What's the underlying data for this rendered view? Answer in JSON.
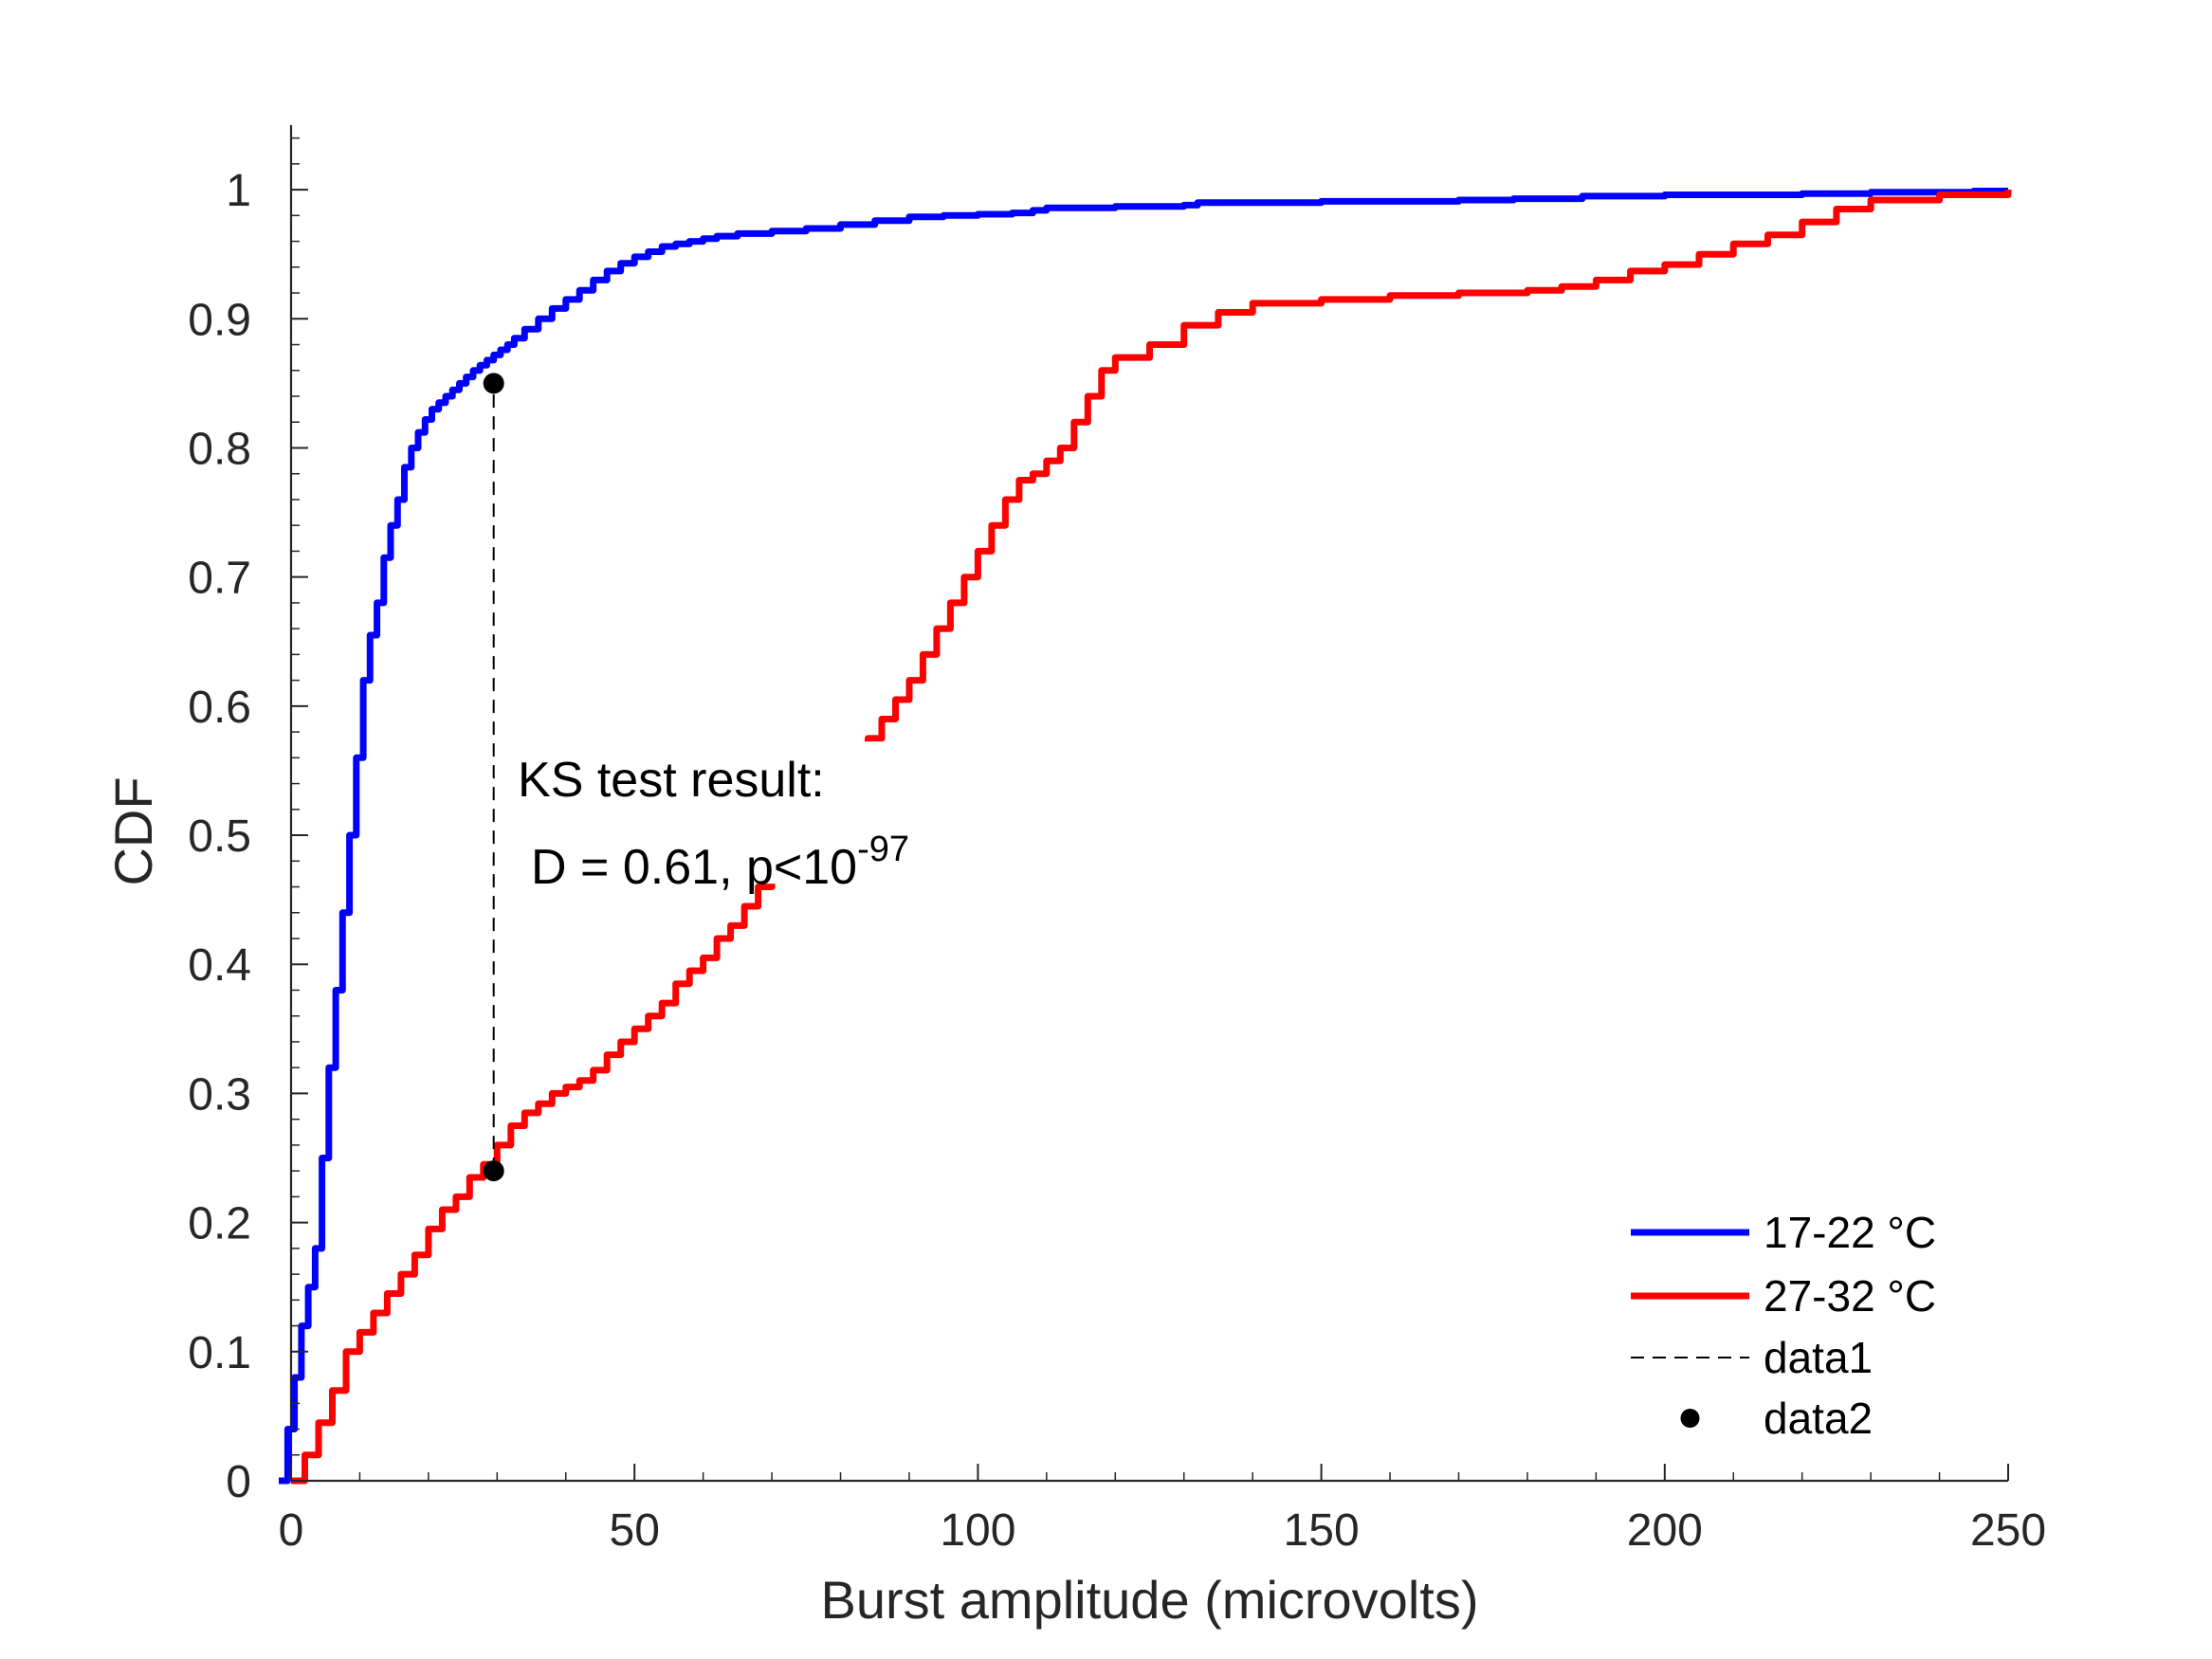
{
  "chart_data": {
    "type": "line",
    "title": "",
    "xlabel": "Burst amplitude (microvolts)",
    "ylabel": "CDF",
    "xlim": [
      0,
      250
    ],
    "ylim": [
      0,
      1.05
    ],
    "x_ticks": [
      0,
      50,
      100,
      150,
      200,
      250
    ],
    "y_ticks": [
      0,
      0.1,
      0.2,
      0.3,
      0.4,
      0.5,
      0.6,
      0.7,
      0.8,
      0.9,
      1
    ],
    "x_tick_labels": [
      "0",
      "50",
      "100",
      "150",
      "200",
      "250"
    ],
    "y_tick_labels": [
      "0",
      "0.1",
      "0.2",
      "0.3",
      "0.4",
      "0.5",
      "0.6",
      "0.7",
      "0.8",
      "0.9",
      "1"
    ],
    "grid": false,
    "legend_position": "bottom-right",
    "series": [
      {
        "name": "17-22 °C",
        "color": "#0000ff",
        "style": "solid",
        "x": [
          -1.8,
          -0.5,
          0.5,
          1.5,
          2.5,
          3.5,
          4.5,
          5.5,
          6.5,
          7.5,
          8.5,
          9.5,
          10.5,
          11.5,
          12.5,
          13.5,
          14.5,
          15.5,
          16.5,
          17.5,
          18.5,
          19.5,
          20.5,
          21.5,
          22.5,
          23.5,
          24.5,
          25.5,
          26.5,
          27.5,
          28.5,
          29.5,
          30.5,
          31.5,
          32.5,
          34,
          36,
          38,
          40,
          42,
          44,
          46,
          48,
          50,
          52,
          54,
          56,
          58,
          60,
          62,
          65,
          70,
          75,
          80,
          85,
          90,
          95,
          100,
          105,
          108,
          110,
          120,
          130,
          132,
          150,
          170,
          178,
          188,
          200,
          220,
          230,
          245,
          250
        ],
        "y": [
          0,
          0.04,
          0.08,
          0.12,
          0.15,
          0.18,
          0.25,
          0.32,
          0.38,
          0.44,
          0.5,
          0.56,
          0.62,
          0.655,
          0.68,
          0.715,
          0.74,
          0.76,
          0.785,
          0.8,
          0.812,
          0.822,
          0.83,
          0.835,
          0.84,
          0.845,
          0.85,
          0.855,
          0.86,
          0.864,
          0.868,
          0.872,
          0.876,
          0.88,
          0.885,
          0.892,
          0.9,
          0.908,
          0.915,
          0.922,
          0.93,
          0.937,
          0.943,
          0.948,
          0.952,
          0.956,
          0.958,
          0.96,
          0.962,
          0.964,
          0.966,
          0.968,
          0.97,
          0.973,
          0.976,
          0.979,
          0.98,
          0.981,
          0.982,
          0.984,
          0.986,
          0.987,
          0.988,
          0.99,
          0.991,
          0.992,
          0.993,
          0.995,
          0.996,
          0.997,
          0.998,
          0.999,
          1.0
        ]
      },
      {
        "name": "27-32 °C",
        "color": "#ff0000",
        "style": "solid",
        "x": [
          0,
          2,
          4,
          6,
          8,
          10,
          12,
          14,
          16,
          18,
          20,
          22,
          24,
          26,
          28,
          30,
          32,
          34,
          36,
          38,
          40,
          42,
          44,
          46,
          48,
          50,
          52,
          54,
          56,
          58,
          60,
          62,
          64,
          66,
          68,
          70,
          72,
          74,
          76,
          78,
          80,
          82,
          84,
          86,
          88,
          90,
          92,
          94,
          96,
          98,
          100,
          102,
          104,
          106,
          108,
          110,
          112,
          114,
          116,
          118,
          120,
          125,
          130,
          135,
          140,
          150,
          160,
          170,
          180,
          185,
          190,
          195,
          200,
          205,
          210,
          215,
          220,
          225,
          230,
          240,
          250
        ],
        "y": [
          0,
          0.02,
          0.045,
          0.07,
          0.1,
          0.115,
          0.13,
          0.145,
          0.16,
          0.175,
          0.195,
          0.21,
          0.22,
          0.235,
          0.245,
          0.26,
          0.275,
          0.285,
          0.292,
          0.3,
          0.305,
          0.31,
          0.318,
          0.33,
          0.34,
          0.35,
          0.36,
          0.37,
          0.385,
          0.395,
          0.405,
          0.42,
          0.43,
          0.445,
          0.46,
          0.475,
          0.49,
          0.505,
          0.52,
          0.535,
          0.55,
          0.565,
          0.575,
          0.59,
          0.605,
          0.62,
          0.64,
          0.66,
          0.68,
          0.7,
          0.72,
          0.74,
          0.76,
          0.775,
          0.78,
          0.79,
          0.8,
          0.82,
          0.84,
          0.86,
          0.87,
          0.88,
          0.895,
          0.905,
          0.912,
          0.915,
          0.918,
          0.92,
          0.922,
          0.925,
          0.93,
          0.937,
          0.942,
          0.95,
          0.958,
          0.965,
          0.975,
          0.985,
          0.992,
          0.996,
          1.0
        ]
      },
      {
        "name": "data1",
        "color": "#000000",
        "style": "dashed",
        "x": [
          29.5,
          29.5
        ],
        "y": [
          0.24,
          0.85
        ]
      },
      {
        "name": "data2",
        "color": "#000000",
        "style": "markers",
        "x": [
          29.5,
          29.5
        ],
        "y": [
          0.85,
          0.24
        ]
      }
    ],
    "annotations": [
      {
        "text_line1": "KS test result:",
        "text_line2_prefix": "D = 0.61, p<10",
        "text_line2_superscript": "-97",
        "x": 33,
        "y": 0.53
      }
    ]
  }
}
